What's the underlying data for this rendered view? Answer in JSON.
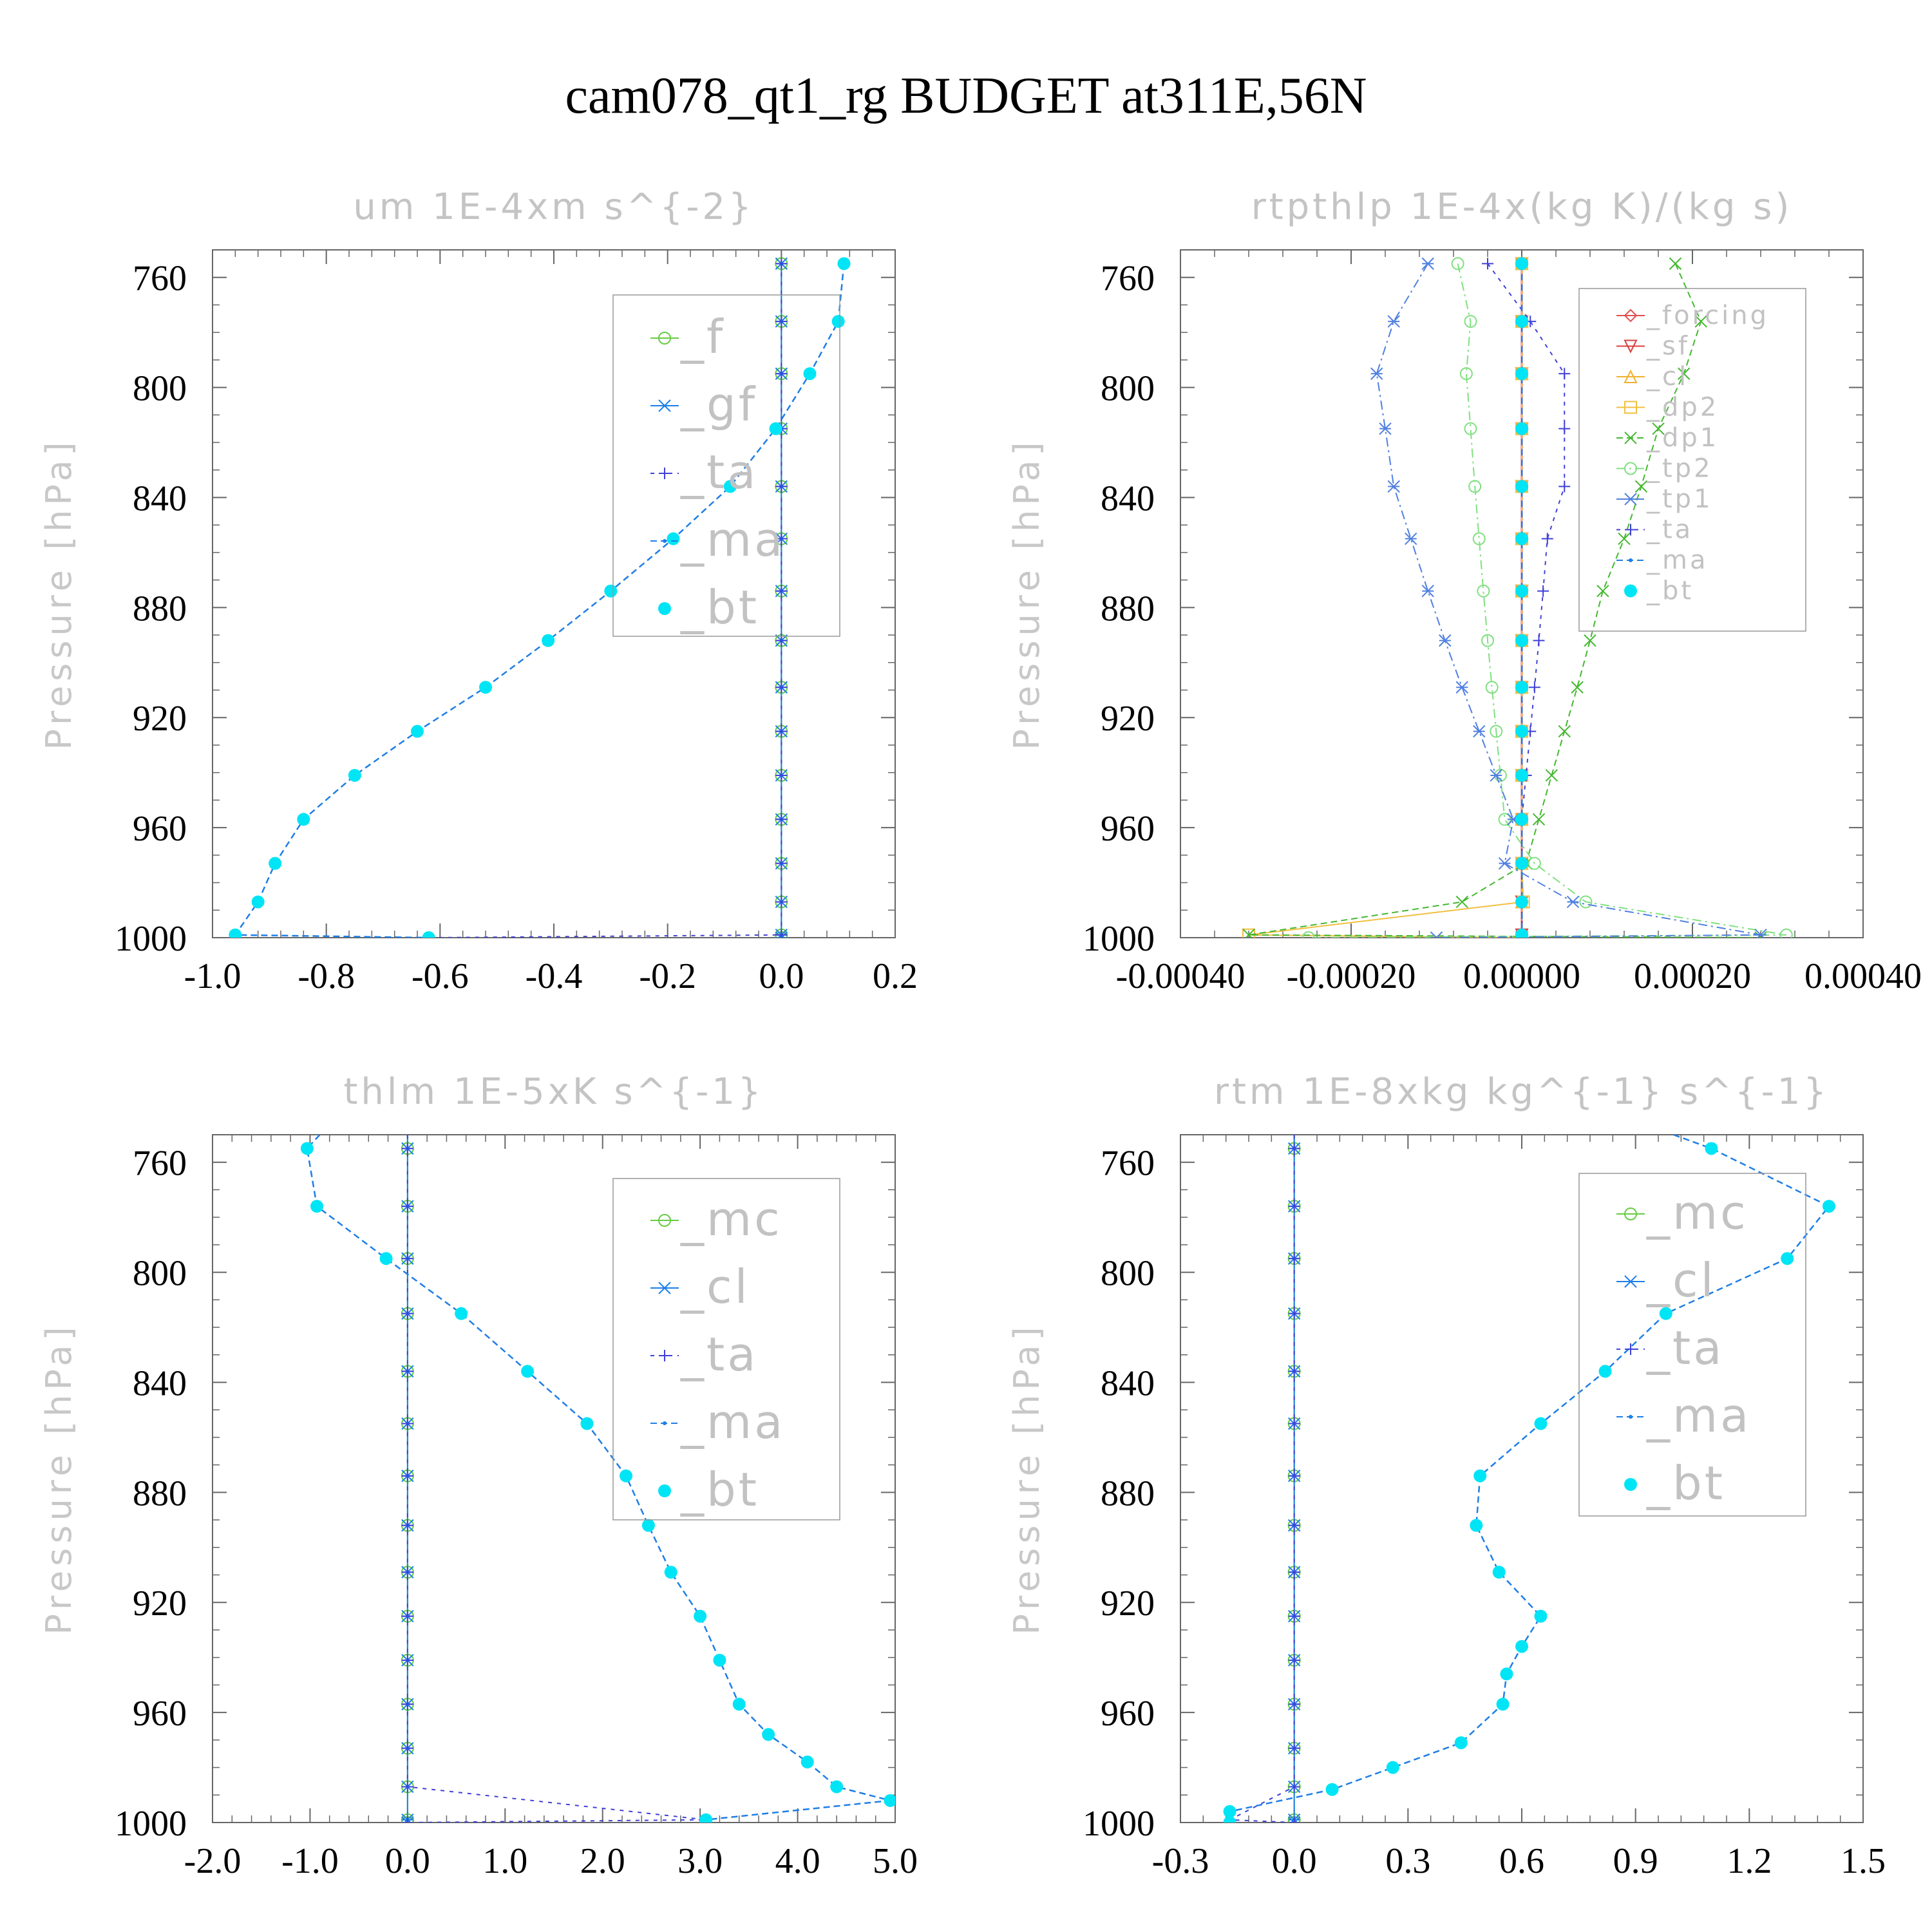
{
  "title": "cam078_qt1_rg  BUDGET at311E,56N",
  "colors": {
    "bt": "#00e5f5",
    "ma": "#1e7ee6",
    "ta": "#4040d8",
    "green": "#66cc44",
    "forcing": "#e05050",
    "sf": "#d84040",
    "cl_o": "#f0b030",
    "dp2": "#f0c040",
    "dp1": "#44b830",
    "tp2": "#80e080",
    "tp1": "#5080e0",
    "axis": "#666666"
  },
  "chart_data": [
    {
      "type": "line",
      "title": "um   1E-4xm s^{-2}",
      "ylabel": "Pressure [hPa]",
      "xlim": [
        -1.0,
        0.2
      ],
      "ylim": [
        1000,
        750
      ],
      "xticks": [
        "-1.0",
        "-0.8",
        "-0.6",
        "-0.4",
        "-0.2",
        "0.0",
        "0.2"
      ],
      "xtick_values": [
        -1.0,
        -0.8,
        -0.6,
        -0.4,
        -0.2,
        0.0,
        0.2
      ],
      "yticks": [
        "760",
        "800",
        "840",
        "880",
        "920",
        "960",
        "1000"
      ],
      "ytick_values": [
        760,
        800,
        840,
        880,
        920,
        960,
        1000
      ],
      "legend": [
        "_f",
        "_gf",
        "_ta",
        "_ma",
        "_bt"
      ],
      "levels": [
        755,
        776,
        795,
        815,
        836,
        855,
        874,
        892,
        909,
        925,
        941,
        957,
        973,
        987,
        999,
        1000
      ],
      "series": [
        {
          "name": "_f",
          "style": "green_o",
          "values": [
            0,
            0,
            0,
            0,
            0,
            0,
            0,
            0,
            0,
            0,
            0,
            0,
            0,
            0,
            0,
            0
          ]
        },
        {
          "name": "_gf",
          "style": "ma_star",
          "values": [
            0,
            0,
            0,
            0,
            0,
            0,
            0,
            0,
            0,
            0,
            0,
            0,
            0,
            0,
            0,
            0
          ]
        },
        {
          "name": "_ta",
          "style": "ta_plus",
          "values": [
            0,
            0,
            0,
            0,
            0,
            0,
            0,
            0,
            0,
            0,
            0,
            0,
            0,
            0,
            0.0,
            -0.62
          ]
        },
        {
          "name": "_ma",
          "style": "ma_dash",
          "values": [
            0.11,
            0.1,
            0.05,
            -0.01,
            -0.09,
            -0.19,
            -0.3,
            -0.41,
            -0.52,
            -0.64,
            -0.75,
            -0.84,
            -0.89,
            -0.92,
            -0.96,
            -0.62
          ]
        },
        {
          "name": "_bt",
          "style": "bt_dot",
          "values": [
            0.11,
            0.1,
            0.05,
            -0.01,
            -0.09,
            -0.19,
            -0.3,
            -0.41,
            -0.52,
            -0.64,
            -0.75,
            -0.84,
            -0.89,
            -0.92,
            -0.96,
            -0.62
          ]
        }
      ]
    },
    {
      "type": "line",
      "title": "rtpthlp   1E-4x(kg K)/(kg s)",
      "ylabel": "Pressure [hPa]",
      "xlim": [
        -0.0004,
        0.0004
      ],
      "ylim": [
        1000,
        750
      ],
      "xticks": [
        "-0.00040",
        "-0.00020",
        "0.00000",
        "0.00020",
        "0.00040"
      ],
      "xtick_values": [
        -0.0004,
        -0.0002,
        0.0,
        0.0002,
        0.0004
      ],
      "yticks": [
        "760",
        "800",
        "840",
        "880",
        "920",
        "960",
        "1000"
      ],
      "ytick_values": [
        760,
        800,
        840,
        880,
        920,
        960,
        1000
      ],
      "legend": [
        "_forcing",
        "_sf",
        "_cl",
        "_dp2",
        "_dp1",
        "_tp2",
        "_tp1",
        "_ta",
        "_ma",
        "_bt"
      ],
      "levels": [
        755,
        776,
        795,
        815,
        836,
        855,
        874,
        892,
        909,
        925,
        941,
        957,
        973,
        987,
        999,
        1000
      ],
      "series": [
        {
          "name": "_forcing",
          "style": "forcing",
          "values": [
            0,
            0,
            0,
            0,
            0,
            0,
            0,
            0,
            0,
            0,
            0,
            0,
            0,
            0,
            0,
            0
          ]
        },
        {
          "name": "_sf",
          "style": "sf",
          "values": [
            0,
            0,
            0,
            0,
            0,
            0,
            0,
            0,
            0,
            0,
            0,
            0,
            0,
            0,
            0,
            0
          ]
        },
        {
          "name": "_cl",
          "style": "cl_o",
          "values": [
            0,
            0,
            0,
            0,
            0,
            0,
            0,
            0,
            0,
            0,
            0,
            0,
            0,
            0,
            0,
            0
          ]
        },
        {
          "name": "_dp2",
          "style": "dp2",
          "values": [
            0,
            0,
            0,
            0,
            0,
            0,
            0,
            0,
            0,
            0,
            0,
            0,
            0,
            2e-06,
            -0.00032,
            0
          ]
        },
        {
          "name": "_dp1",
          "style": "dp1",
          "values": [
            0.00018,
            0.00021,
            0.00019,
            0.00016,
            0.00014,
            0.00012,
            9.5e-05,
            8e-05,
            6.5e-05,
            5e-05,
            3.5e-05,
            2e-05,
            5e-06,
            -7e-05,
            -0.00032,
            0.00028
          ]
        },
        {
          "name": "_tp2",
          "style": "tp2",
          "values": [
            -7.5e-05,
            -6e-05,
            -6.5e-05,
            -6e-05,
            -5.5e-05,
            -5e-05,
            -4.5e-05,
            -4e-05,
            -3.5e-05,
            -3e-05,
            -2.5e-05,
            -2e-05,
            1.5e-05,
            7.5e-05,
            0.00031,
            -0.00025
          ]
        },
        {
          "name": "_tp1",
          "style": "tp1",
          "values": [
            -0.00011,
            -0.00015,
            -0.00017,
            -0.00016,
            -0.00015,
            -0.00013,
            -0.00011,
            -9e-05,
            -7e-05,
            -5e-05,
            -3e-05,
            -1e-05,
            -2e-05,
            6e-05,
            0.00028,
            -0.0001
          ]
        },
        {
          "name": "_ta",
          "style": "ta_plus",
          "values": [
            -4e-05,
            1e-05,
            5e-05,
            5e-05,
            5e-05,
            3e-05,
            2.5e-05,
            2e-05,
            1.5e-05,
            1e-05,
            5e-06,
            0.0,
            0.0,
            0.0,
            0.0,
            0.0
          ]
        },
        {
          "name": "_ma",
          "style": "ma_dash",
          "values": [
            0,
            0,
            0,
            0,
            0,
            0,
            0,
            0,
            0,
            0,
            0,
            0,
            0,
            0,
            0,
            0
          ]
        },
        {
          "name": "_bt",
          "style": "bt_dot",
          "values": [
            0,
            0,
            0,
            0,
            0,
            0,
            0,
            0,
            0,
            0,
            0,
            0,
            0,
            0,
            0,
            0
          ]
        }
      ]
    },
    {
      "type": "line",
      "title": "thlm   1E-5xK s^{-1}",
      "ylabel": "Pressure [hPa]",
      "xlim": [
        -2.0,
        5.0
      ],
      "ylim": [
        1000,
        750
      ],
      "xticks": [
        "-2.0",
        "-1.0",
        "0.0",
        "1.0",
        "2.0",
        "3.0",
        "4.0",
        "5.0"
      ],
      "xtick_values": [
        -2.0,
        -1.0,
        0.0,
        1.0,
        2.0,
        3.0,
        4.0,
        5.0
      ],
      "yticks": [
        "760",
        "800",
        "840",
        "880",
        "920",
        "960",
        "1000"
      ],
      "ytick_values": [
        760,
        800,
        840,
        880,
        920,
        960,
        1000
      ],
      "legend": [
        "_mc",
        "_cl",
        "_ta",
        "_ma",
        "_bt"
      ],
      "levels": [
        750,
        755,
        776,
        795,
        815,
        836,
        855,
        874,
        892,
        909,
        925,
        941,
        957,
        973,
        987,
        999,
        1000
      ],
      "series": [
        {
          "name": "_mc",
          "style": "green_o",
          "values": [
            0,
            0,
            0,
            0,
            0,
            0,
            0,
            0,
            0,
            0,
            0,
            0,
            0,
            0,
            0,
            0,
            0
          ]
        },
        {
          "name": "_cl",
          "style": "ma_star",
          "values": [
            0,
            0,
            0,
            0,
            0,
            0,
            0,
            0,
            0,
            0,
            0,
            0,
            0,
            0,
            0,
            0,
            0
          ]
        },
        {
          "name": "_ta",
          "style": "ta_plus",
          "values": [
            0,
            0,
            0,
            0,
            0,
            0,
            0,
            0,
            0,
            0,
            0,
            0,
            0,
            0,
            0,
            3.06,
            0.0
          ]
        },
        {
          "name": "_ma",
          "style": "ma_dash",
          "values": [
            -0.9,
            -1.03,
            -0.93,
            -0.22,
            0.55,
            1.23,
            1.84,
            2.24,
            2.47,
            2.7,
            3.0,
            3.2,
            3.4,
            3.7,
            4.1,
            4.4,
            4.95,
            3.06,
            3.06
          ]
        },
        {
          "name": "_bt",
          "style": "bt_dot",
          "values": [
            null,
            -1.03,
            -0.93,
            -0.22,
            0.55,
            1.23,
            1.84,
            2.24,
            2.47,
            2.7,
            3.0,
            3.2,
            3.4,
            3.7,
            4.1,
            4.4,
            4.95,
            3.06,
            3.06
          ]
        }
      ],
      "bt_levels": [
        750,
        755,
        776,
        795,
        815,
        836,
        855,
        874,
        892,
        909,
        925,
        941,
        957,
        968,
        978,
        987,
        992,
        999,
        1000
      ]
    },
    {
      "type": "line",
      "title": "rtm   1E-8xkg kg^{-1} s^{-1}",
      "ylabel": "Pressure [hPa]",
      "xlim": [
        -0.3,
        1.5
      ],
      "ylim": [
        1000,
        750
      ],
      "xticks": [
        "-0.3",
        "0.0",
        "0.3",
        "0.6",
        "0.9",
        "1.2",
        "1.5"
      ],
      "xtick_values": [
        -0.3,
        0.0,
        0.3,
        0.6,
        0.9,
        1.2,
        1.5
      ],
      "yticks": [
        "760",
        "800",
        "840",
        "880",
        "920",
        "960",
        "1000"
      ],
      "ytick_values": [
        760,
        800,
        840,
        880,
        920,
        960,
        1000
      ],
      "legend": [
        "_mc",
        "_cl",
        "_ta",
        "_ma",
        "_bt"
      ],
      "levels": [
        750,
        755,
        776,
        795,
        815,
        836,
        855,
        874,
        892,
        909,
        925,
        941,
        957,
        973,
        987,
        999,
        1000
      ],
      "series": [
        {
          "name": "_mc",
          "style": "green_o",
          "values": [
            0,
            0,
            0,
            0,
            0,
            0,
            0,
            0,
            0,
            0,
            0,
            0,
            0,
            0,
            0,
            0,
            0
          ]
        },
        {
          "name": "_cl",
          "style": "ma_star",
          "values": [
            0,
            0,
            0,
            0,
            0,
            0,
            0,
            0,
            0,
            0,
            0,
            0,
            0,
            0,
            0,
            0,
            0
          ]
        },
        {
          "name": "_ta",
          "style": "ta_plus",
          "values": [
            0,
            0,
            0,
            0,
            0,
            0,
            0,
            0,
            0,
            0,
            0,
            0,
            0,
            0,
            0,
            -0.17,
            0.0
          ]
        },
        {
          "name": "_ma",
          "style": "ma_dash",
          "values": [
            1.0,
            1.1,
            1.41,
            1.3,
            0.98,
            0.82,
            0.65,
            0.49,
            0.48,
            0.54,
            0.65,
            0.6,
            0.56,
            0.55,
            0.44,
            0.26,
            0.1,
            -0.17,
            -0.17
          ]
        },
        {
          "name": "_bt",
          "style": "bt_dot",
          "values": [
            null,
            1.1,
            1.41,
            1.3,
            0.98,
            0.82,
            0.65,
            0.49,
            0.48,
            0.54,
            0.65,
            0.6,
            0.56,
            0.55,
            0.44,
            0.26,
            0.1,
            -0.17,
            -0.17
          ]
        }
      ],
      "bt_levels": [
        750,
        755,
        776,
        795,
        815,
        836,
        855,
        874,
        892,
        909,
        925,
        936,
        946,
        957,
        971,
        980,
        988,
        996,
        1000
      ]
    }
  ]
}
